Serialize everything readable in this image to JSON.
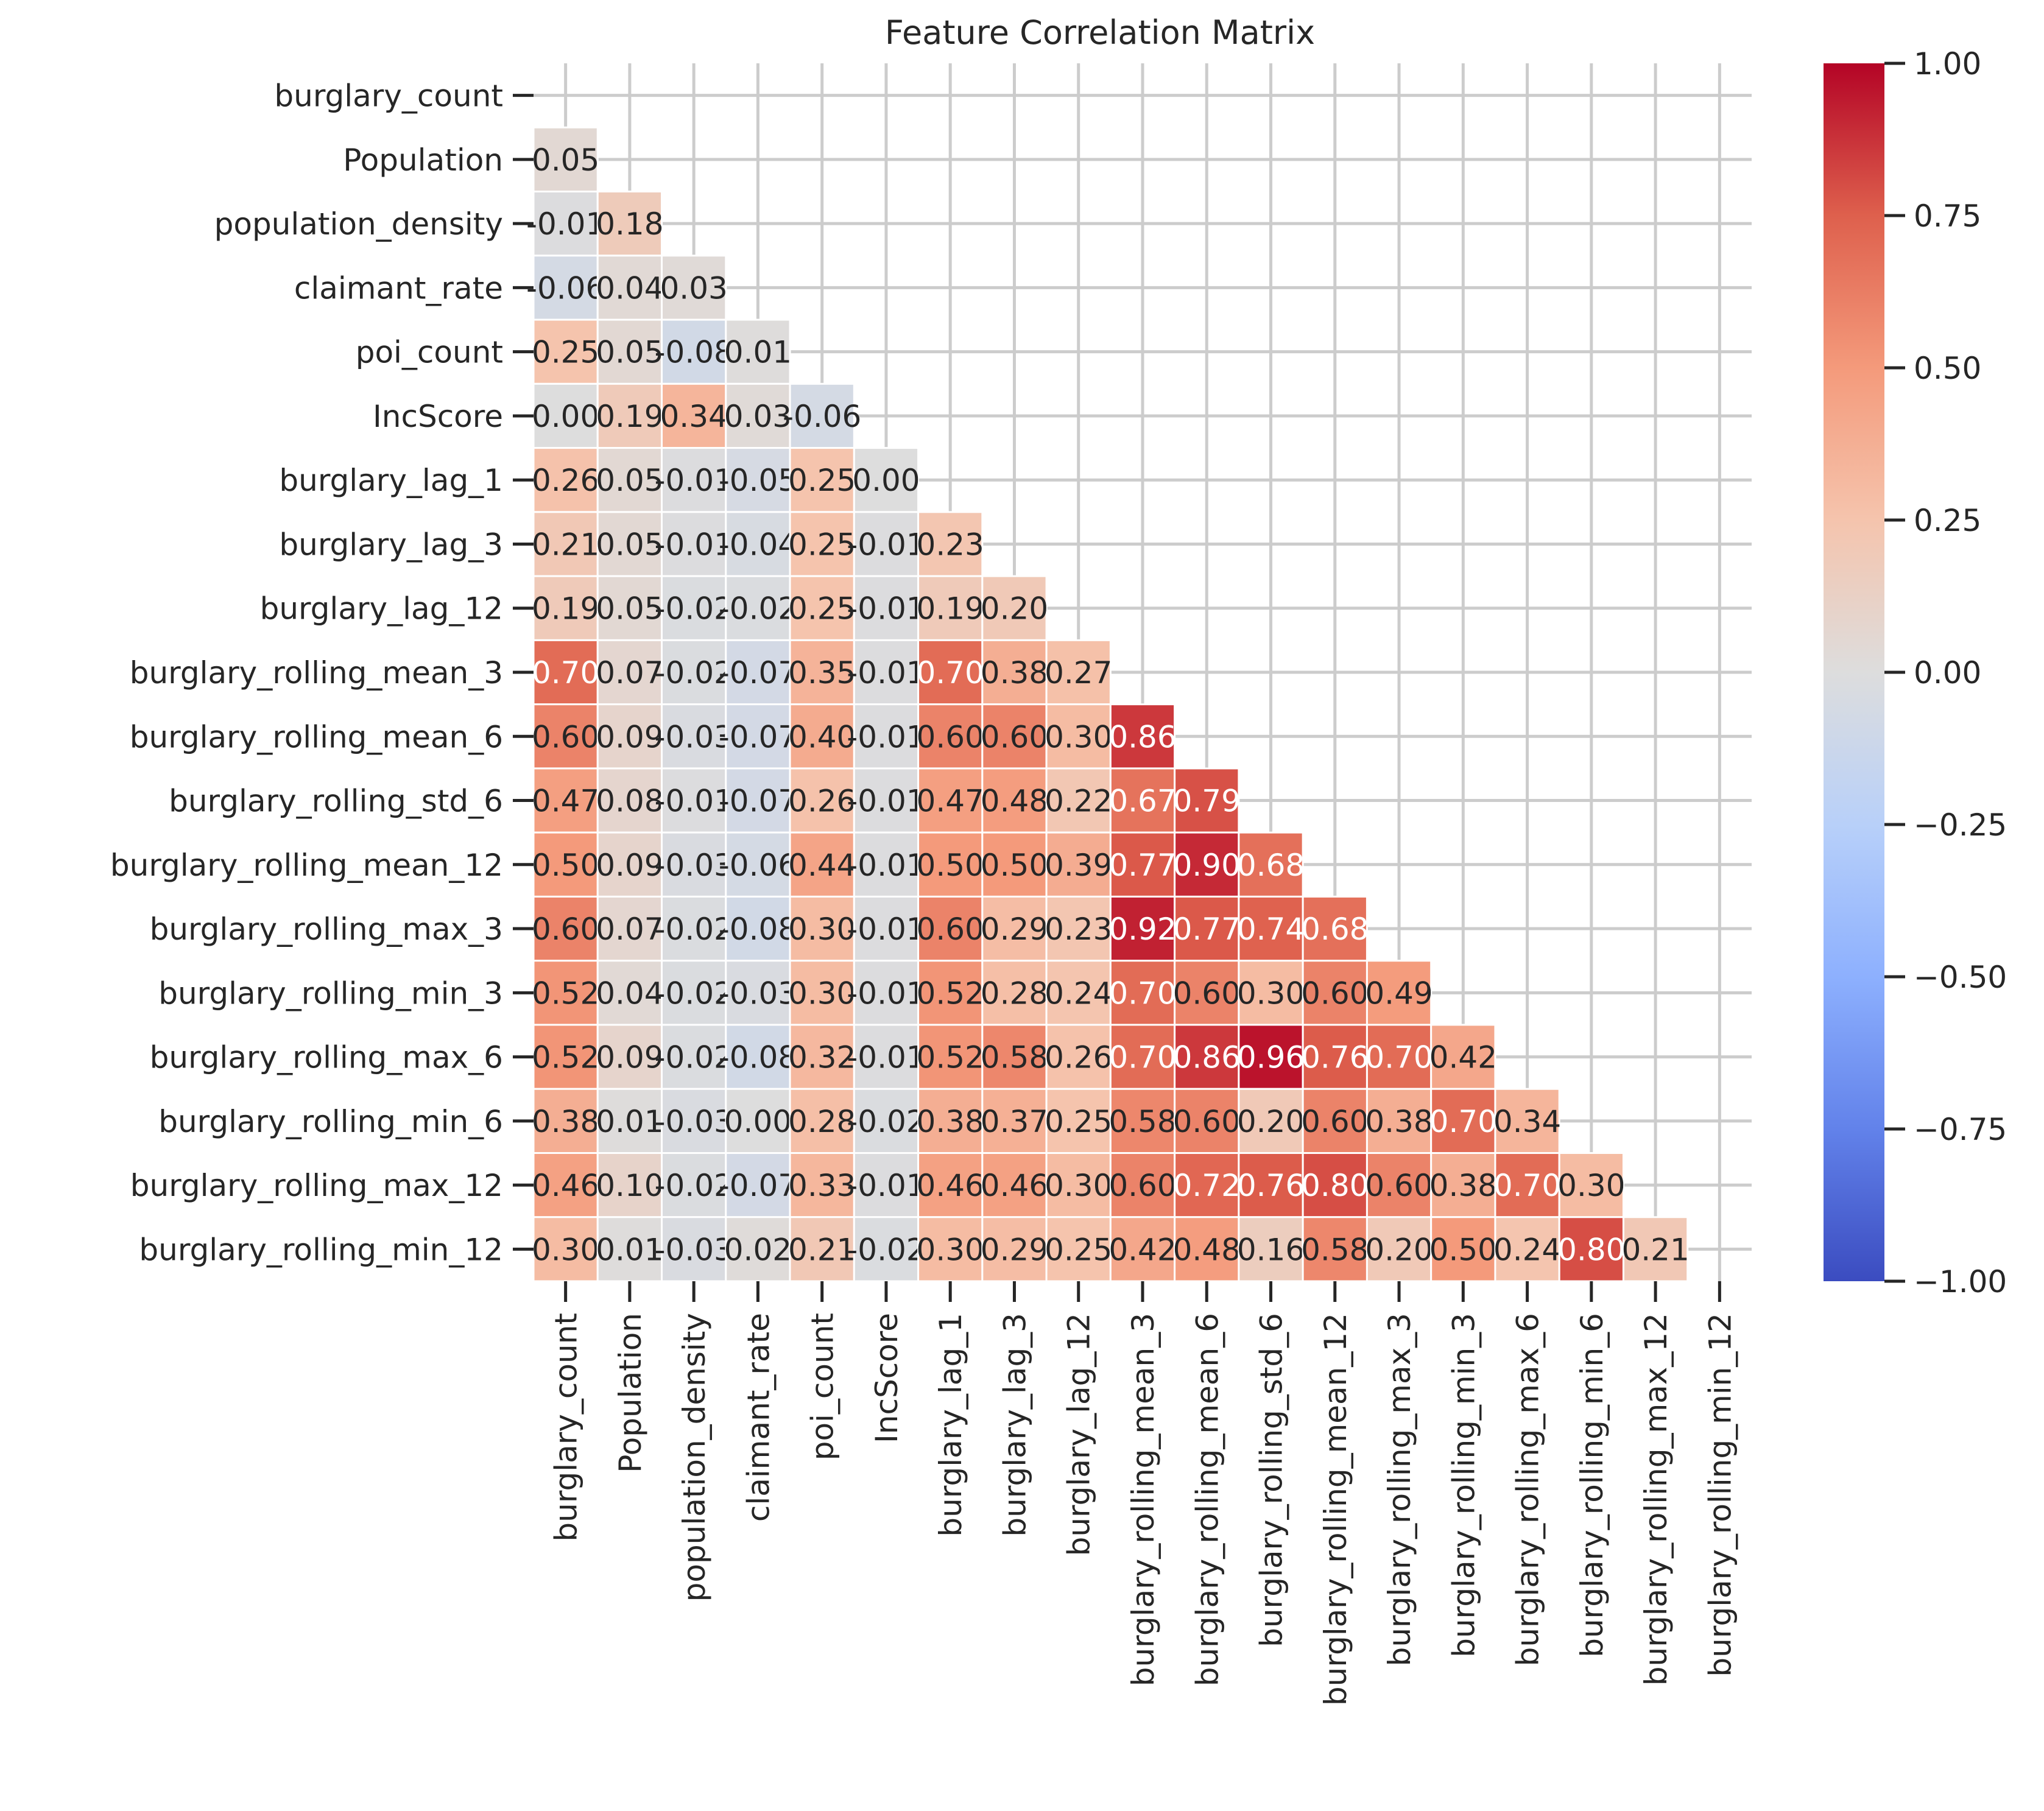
{
  "chart_data": {
    "type": "heatmap",
    "title": "Feature Correlation Matrix",
    "labels": [
      "burglary_count",
      "Population",
      "population_density",
      "claimant_rate",
      "poi_count",
      "IncScore",
      "burglary_lag_1",
      "burglary_lag_3",
      "burglary_lag_12",
      "burglary_rolling_mean_3",
      "burglary_rolling_mean_6",
      "burglary_rolling_std_6",
      "burglary_rolling_mean_12",
      "burglary_rolling_max_3",
      "burglary_rolling_min_3",
      "burglary_rolling_max_6",
      "burglary_rolling_min_6",
      "burglary_rolling_max_12",
      "burglary_rolling_min_12"
    ],
    "mask": "upper-triangle-and-diagonal",
    "colormap": "coolwarm",
    "vmin": -1.0,
    "vmax": 1.0,
    "colorbar_ticks": [
      1.0,
      0.75,
      0.5,
      0.25,
      0.0,
      -0.25,
      -0.5,
      -0.75,
      -1.0
    ],
    "colorbar_tick_labels": [
      "1.00",
      "0.75",
      "0.50",
      "0.25",
      "0.00",
      "−0.25",
      "−0.50",
      "−0.75",
      "−1.00"
    ],
    "grid": true,
    "values": [
      [],
      [
        0.05
      ],
      [
        -0.01,
        0.18
      ],
      [
        -0.06,
        0.04,
        0.03
      ],
      [
        0.25,
        0.05,
        -0.08,
        0.01
      ],
      [
        0.0,
        0.19,
        0.34,
        0.03,
        -0.06
      ],
      [
        0.26,
        0.05,
        -0.01,
        -0.05,
        0.25,
        0.0
      ],
      [
        0.21,
        0.05,
        -0.01,
        -0.04,
        0.25,
        -0.01,
        0.23
      ],
      [
        0.19,
        0.05,
        -0.02,
        -0.02,
        0.25,
        -0.01,
        0.19,
        0.2
      ],
      [
        0.7,
        0.07,
        -0.02,
        -0.07,
        0.35,
        -0.01,
        0.7,
        0.38,
        0.27
      ],
      [
        0.6,
        0.09,
        -0.03,
        -0.07,
        0.4,
        -0.01,
        0.6,
        0.6,
        0.3,
        0.86
      ],
      [
        0.47,
        0.08,
        -0.01,
        -0.07,
        0.26,
        -0.01,
        0.47,
        0.48,
        0.22,
        0.67,
        0.79
      ],
      [
        0.5,
        0.09,
        -0.03,
        -0.06,
        0.44,
        -0.01,
        0.5,
        0.5,
        0.39,
        0.77,
        0.9,
        0.68
      ],
      [
        0.6,
        0.07,
        -0.02,
        -0.08,
        0.3,
        -0.01,
        0.6,
        0.29,
        0.23,
        0.92,
        0.77,
        0.74,
        0.68
      ],
      [
        0.52,
        0.04,
        -0.02,
        -0.03,
        0.3,
        -0.01,
        0.52,
        0.28,
        0.24,
        0.7,
        0.6,
        0.3,
        0.6,
        0.49
      ],
      [
        0.52,
        0.09,
        -0.02,
        -0.08,
        0.32,
        -0.01,
        0.52,
        0.58,
        0.26,
        0.7,
        0.86,
        0.96,
        0.76,
        0.7,
        0.42
      ],
      [
        0.38,
        0.01,
        -0.03,
        -0.0,
        0.28,
        -0.02,
        0.38,
        0.37,
        0.25,
        0.58,
        0.6,
        0.2,
        0.6,
        0.38,
        0.7,
        0.34
      ],
      [
        0.46,
        0.1,
        -0.02,
        -0.07,
        0.33,
        -0.01,
        0.46,
        0.46,
        0.3,
        0.6,
        0.72,
        0.76,
        0.8,
        0.6,
        0.38,
        0.7,
        0.3
      ],
      [
        0.3,
        0.01,
        -0.03,
        0.02,
        0.21,
        -0.02,
        0.3,
        0.29,
        0.25,
        0.42,
        0.48,
        0.16,
        0.58,
        0.2,
        0.5,
        0.24,
        0.8,
        0.21
      ]
    ]
  }
}
